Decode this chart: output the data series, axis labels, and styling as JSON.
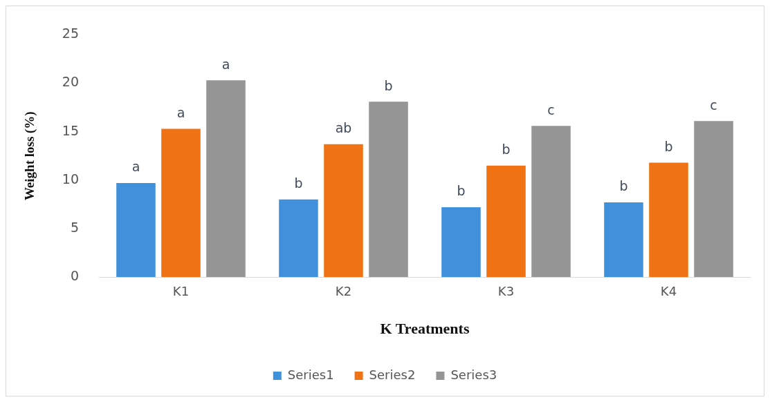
{
  "chart_data": {
    "type": "bar",
    "xlabel": "K Treatments",
    "ylabel": "Weight loss (%)",
    "categories": [
      "K1",
      "K2",
      "K3",
      "K4"
    ],
    "series": [
      {
        "name": "Series1",
        "color": "#4190dc",
        "values": [
          9.7,
          8.0,
          7.2,
          7.7
        ],
        "value_labels": [
          "a",
          "b",
          "b",
          "b"
        ]
      },
      {
        "name": "Series2",
        "color": "#ef7215",
        "values": [
          15.3,
          13.7,
          11.5,
          11.8
        ],
        "value_labels": [
          "a",
          "ab",
          "b",
          "b"
        ]
      },
      {
        "name": "Series3",
        "color": "#959595",
        "values": [
          20.3,
          18.1,
          15.6,
          16.1
        ],
        "value_labels": [
          "a",
          "b",
          "c",
          "c"
        ]
      }
    ],
    "ylim": [
      0,
      25
    ],
    "yticks": [
      0,
      5,
      10,
      15,
      20,
      25
    ],
    "grid": false,
    "legend": "bottom"
  }
}
